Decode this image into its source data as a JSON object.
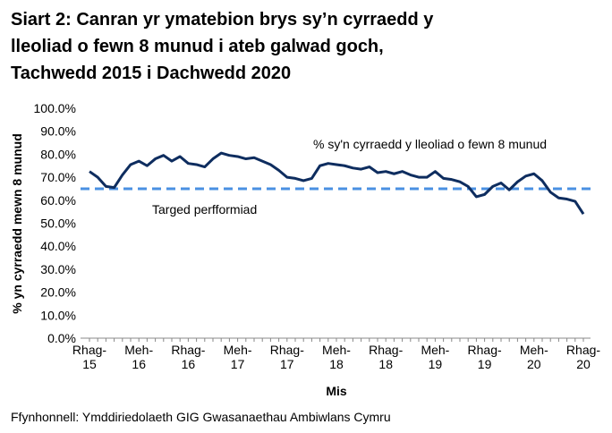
{
  "chart_data": {
    "type": "line",
    "title": [
      "Siart 2: Canran yr ymatebion brys sy’n cyrraedd y",
      "lleoliad o fewn 8 munud i ateb galwad goch,",
      "Tachwedd 2015 i Dachwedd 2020"
    ],
    "y_label": "% yn cyrraedd mewn 8 munud",
    "x_label": "Mis",
    "source": "Ffynhonnell: Ymddiriedolaeth GIG Gwasanaethau Ambiwlans Cymru",
    "categories": [
      "Rhag-15",
      null,
      null,
      null,
      null,
      null,
      "Meh-16",
      null,
      null,
      null,
      null,
      null,
      "Rhag-16",
      null,
      null,
      null,
      null,
      null,
      "Meh-17",
      null,
      null,
      null,
      null,
      null,
      "Rhag-17",
      null,
      null,
      null,
      null,
      null,
      "Meh-18",
      null,
      null,
      null,
      null,
      null,
      "Rhag-18",
      null,
      null,
      null,
      null,
      null,
      "Meh-19",
      null,
      null,
      null,
      null,
      null,
      "Rhag-19",
      null,
      null,
      null,
      null,
      null,
      "Meh-20",
      null,
      null,
      null,
      null,
      null,
      "Rhag-20"
    ],
    "series": [
      {
        "name": "% sy'n cyrraedd y lleoliad o fewn 8 munud",
        "color": "#0e2d5f",
        "values": [
          72.5,
          70,
          66,
          65.5,
          71,
          75.5,
          77,
          75,
          78,
          79.5,
          77,
          79,
          76,
          75.5,
          74.5,
          78,
          80.5,
          79.5,
          79,
          78,
          78.5,
          77,
          75.5,
          73,
          70,
          69.5,
          68.5,
          69.5,
          75,
          76,
          75.5,
          75,
          74,
          73.5,
          74.5,
          72,
          72.5,
          71.5,
          72.5,
          71,
          70,
          70,
          72.5,
          69.5,
          69,
          68,
          66,
          61.5,
          62.5,
          66,
          67.5,
          64.5,
          68,
          70.5,
          71.5,
          68.5,
          63.5,
          61,
          60.5,
          59.5,
          54
        ]
      }
    ],
    "target": {
      "name": "Targed perfformiad",
      "value": 65,
      "color": "#4a90e2"
    },
    "ylim": [
      0,
      100
    ],
    "yticks": [
      {
        "value": 0,
        "label": "0.0%"
      },
      {
        "value": 10,
        "label": "10.0%"
      },
      {
        "value": 20,
        "label": "20.0%"
      },
      {
        "value": 30,
        "label": "30.0%"
      },
      {
        "value": 40,
        "label": "40.0%"
      },
      {
        "value": 50,
        "label": "50.0%"
      },
      {
        "value": 60,
        "label": "60.0%"
      },
      {
        "value": 70,
        "label": "70.0%"
      },
      {
        "value": 80,
        "label": "80.0%"
      },
      {
        "value": 90,
        "label": "90.0%"
      },
      {
        "value": 100,
        "label": "100.0%"
      }
    ]
  }
}
